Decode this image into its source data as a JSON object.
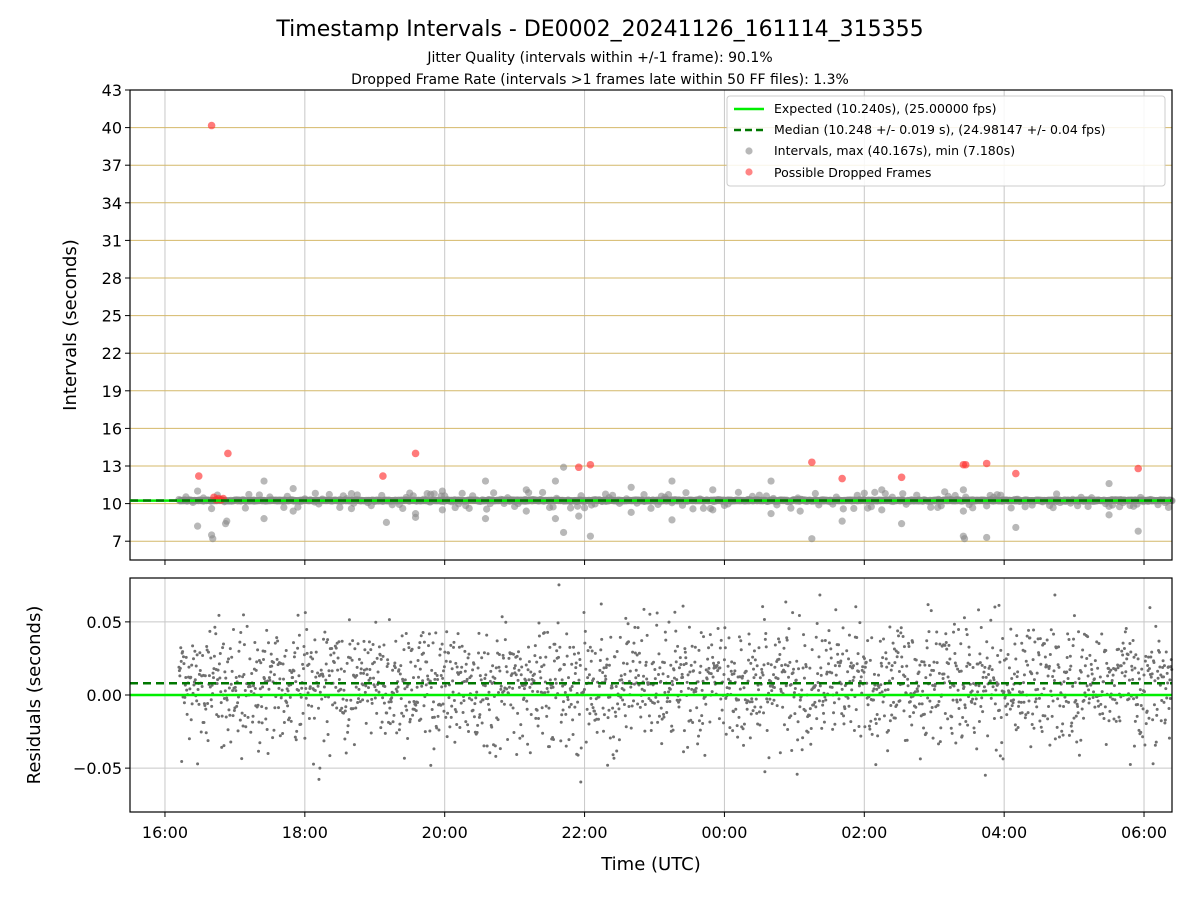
{
  "chart_data": [
    {
      "type": "scatter",
      "title": "Timestamp Intervals - DE0002_20241126_161114_315355",
      "subtitle_lines": [
        "Jitter Quality (intervals within +/-1 frame): 90.1%",
        "Dropped Frame Rate (intervals >1 frames late within 50 FF files): 1.3%"
      ],
      "ylabel": "Intervals (seconds)",
      "ylim": [
        5.5,
        43
      ],
      "yticks": [
        "7",
        "10",
        "13",
        "16",
        "19",
        "22",
        "25",
        "28",
        "31",
        "34",
        "37",
        "40",
        "43"
      ],
      "xrange_hours": [
        -0.5,
        14.4
      ],
      "grid": "on",
      "legend_position": "top-right",
      "legend": [
        "Expected (10.240s), (25.00000 fps)",
        "Median (10.248 +/- 0.019 s), (24.98147 +/- 0.04 fps)",
        "Intervals, max (40.167s), min (7.180s)",
        "Possible Dropped Frames"
      ],
      "expected_value": 10.24,
      "median_value": 10.248,
      "dropped_frames": [
        {
          "time": "16:40",
          "value": 40.167
        },
        {
          "time": "16:29",
          "value": 12.2
        },
        {
          "time": "16:54",
          "value": 14.0
        },
        {
          "time": "16:42",
          "value": 10.5
        },
        {
          "time": "16:44",
          "value": 10.3
        },
        {
          "time": "16:46",
          "value": 10.4
        },
        {
          "time": "16:48",
          "value": 10.3
        },
        {
          "time": "16:50",
          "value": 10.4
        },
        {
          "time": "19:07",
          "value": 12.2
        },
        {
          "time": "19:35",
          "value": 14.0
        },
        {
          "time": "21:55",
          "value": 12.9
        },
        {
          "time": "22:05",
          "value": 13.1
        },
        {
          "time": "01:15",
          "value": 13.3
        },
        {
          "time": "01:41",
          "value": 12.0
        },
        {
          "time": "02:32",
          "value": 12.1
        },
        {
          "time": "03:25",
          "value": 13.1
        },
        {
          "time": "03:27",
          "value": 13.1
        },
        {
          "time": "03:45",
          "value": 13.2
        },
        {
          "time": "04:10",
          "value": 12.4
        },
        {
          "time": "05:55",
          "value": 12.8
        }
      ],
      "interval_outliers": [
        {
          "time": "16:28",
          "value": 8.2
        },
        {
          "time": "16:28",
          "value": 11.0
        },
        {
          "time": "16:40",
          "value": 7.5
        },
        {
          "time": "16:41",
          "value": 7.2
        },
        {
          "time": "16:40",
          "value": 9.6
        },
        {
          "time": "16:52",
          "value": 8.4
        },
        {
          "time": "16:53",
          "value": 8.6
        },
        {
          "time": "17:25",
          "value": 11.8
        },
        {
          "time": "17:25",
          "value": 8.8
        },
        {
          "time": "17:50",
          "value": 11.2
        },
        {
          "time": "17:50",
          "value": 9.4
        },
        {
          "time": "18:40",
          "value": 10.8
        },
        {
          "time": "18:40",
          "value": 9.6
        },
        {
          "time": "19:10",
          "value": 8.5
        },
        {
          "time": "19:35",
          "value": 9.2
        },
        {
          "time": "19:35",
          "value": 8.9
        },
        {
          "time": "19:58",
          "value": 11.0
        },
        {
          "time": "19:58",
          "value": 9.5
        },
        {
          "time": "20:35",
          "value": 11.8
        },
        {
          "time": "20:35",
          "value": 8.8
        },
        {
          "time": "21:10",
          "value": 11.1
        },
        {
          "time": "21:10",
          "value": 9.4
        },
        {
          "time": "21:35",
          "value": 11.8
        },
        {
          "time": "21:35",
          "value": 8.8
        },
        {
          "time": "21:42",
          "value": 12.9
        },
        {
          "time": "21:42",
          "value": 7.7
        },
        {
          "time": "21:55",
          "value": 9.0
        },
        {
          "time": "22:05",
          "value": 7.4
        },
        {
          "time": "22:40",
          "value": 11.3
        },
        {
          "time": "22:40",
          "value": 9.3
        },
        {
          "time": "23:15",
          "value": 11.8
        },
        {
          "time": "23:15",
          "value": 8.7
        },
        {
          "time": "23:50",
          "value": 11.1
        },
        {
          "time": "23:50",
          "value": 9.5
        },
        {
          "time": "00:40",
          "value": 11.8
        },
        {
          "time": "00:40",
          "value": 9.2
        },
        {
          "time": "01:15",
          "value": 7.2
        },
        {
          "time": "01:05",
          "value": 9.4
        },
        {
          "time": "01:41",
          "value": 8.6
        },
        {
          "time": "02:15",
          "value": 11.1
        },
        {
          "time": "02:15",
          "value": 9.5
        },
        {
          "time": "02:32",
          "value": 8.4
        },
        {
          "time": "03:25",
          "value": 7.4
        },
        {
          "time": "03:26",
          "value": 7.2
        },
        {
          "time": "03:25",
          "value": 11.1
        },
        {
          "time": "03:25",
          "value": 9.4
        },
        {
          "time": "03:45",
          "value": 7.3
        },
        {
          "time": "04:10",
          "value": 8.1
        },
        {
          "time": "05:30",
          "value": 11.6
        },
        {
          "time": "05:30",
          "value": 9.1
        },
        {
          "time": "05:55",
          "value": 7.8
        }
      ]
    },
    {
      "type": "scatter",
      "ylabel": "Residuals (seconds)",
      "xlabel": "Time (UTC)",
      "ylim": [
        -0.08,
        0.08
      ],
      "yticks": [
        "0.05",
        "0.00",
        "−0.05"
      ],
      "xticks": [
        "16:00",
        "18:00",
        "20:00",
        "22:00",
        "00:00",
        "02:00",
        "04:00",
        "06:00"
      ],
      "grid": "on",
      "expected_residual": 0.0,
      "median_residual": 0.008
    }
  ],
  "colors": {
    "expected": "#00ee00",
    "median": "#007700",
    "intervals": "#888888",
    "dropped": "#ff3333",
    "grid_gold": "#d4b86a",
    "grid_gray": "#c8c8c8",
    "residuals": "#707070"
  }
}
